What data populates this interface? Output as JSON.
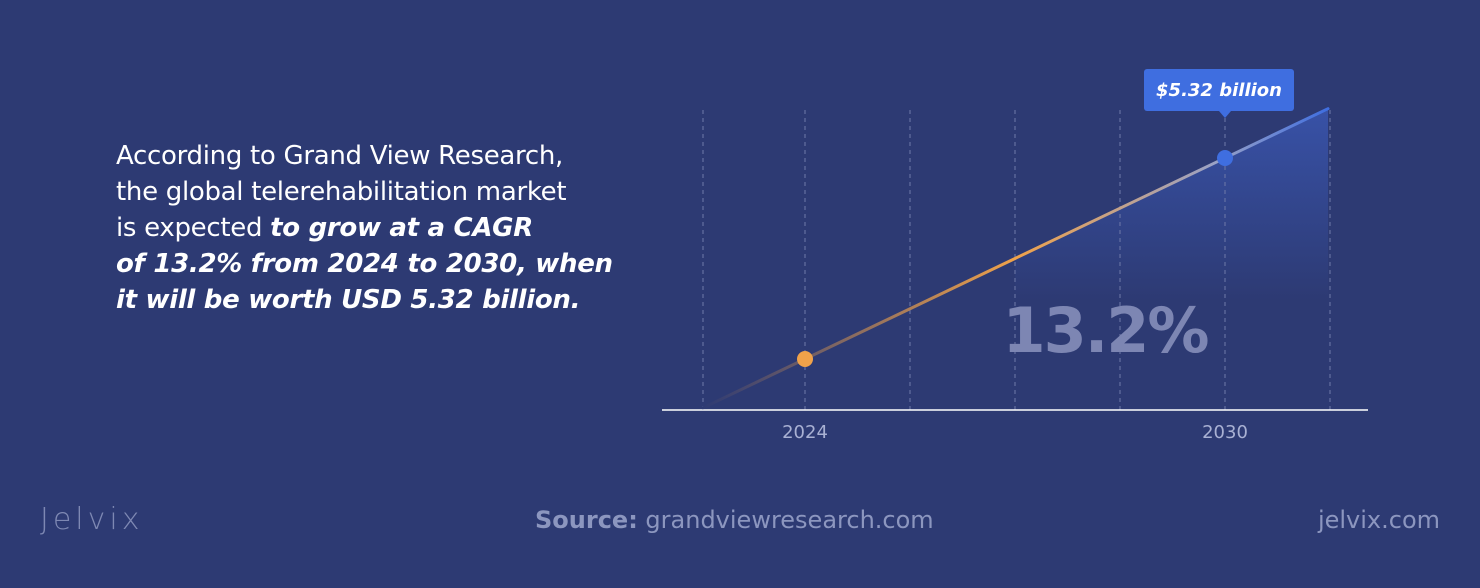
{
  "intro": {
    "line1": "According to Grand View Research,",
    "line2": "the global telerehabilitation market",
    "line3_plain": "is expected ",
    "line3_em": "to grow at a CAGR",
    "line4_em": "of 13.2% from 2024 to 2030, when",
    "line5_em": "it will be worth USD 5.32 billion."
  },
  "chart_data": {
    "type": "line",
    "x": [
      "2024",
      "2030"
    ],
    "series": [
      {
        "values": [
          null,
          5.32
        ]
      }
    ],
    "point_labels": {
      "2030": "$5.32 billion"
    },
    "rate_label": "13.2%",
    "xlabel": "",
    "ylabel": "",
    "grid": true,
    "colors": {
      "start_point": "#f0a24a",
      "end_point": "#3f6ee0",
      "callout": "#3f6ee0",
      "area": "#3a56b0",
      "grid": "#6e79a8",
      "axis": "#ffffff",
      "tick_text": "#a9b1d3"
    }
  },
  "footer": {
    "source_label": "Source:",
    "source_value": " grandviewresearch.com",
    "brand": "Jelvix",
    "site": "jelvix.com"
  }
}
